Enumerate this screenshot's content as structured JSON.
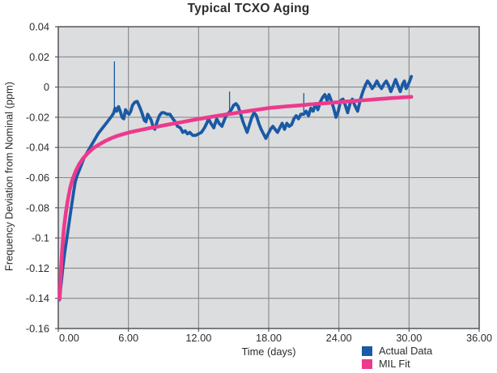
{
  "title": "Typical TCXO Aging",
  "chart_data": {
    "type": "line",
    "title": "Typical TCXO Aging",
    "xlabel": "Time (days)",
    "ylabel": "Frequency Deviation from Nominal (ppm)",
    "xlim": [
      0,
      36
    ],
    "ylim": [
      -0.16,
      0.04
    ],
    "x_ticks": [
      "0.00",
      "6.00",
      "12.00",
      "18.00",
      "24.00",
      "30.00",
      "36.00"
    ],
    "y_ticks": [
      "0.04",
      "0.02",
      "0",
      "-0.02",
      "-0.04",
      "-0.06",
      "-0.08",
      "-0.1",
      "-0.12",
      "-0.14",
      "-0.16"
    ],
    "grid": true,
    "legend_position": "bottom-right",
    "colors": {
      "plot_background": "#dcddde",
      "gridline": "#85888b",
      "plot_border": "#54575a",
      "text": "#2e2c2b",
      "actual_data": "#1a59a5",
      "mil_fit": "#ec3a8d"
    },
    "series": [
      {
        "name": "Actual Data",
        "color": "#1a59a5",
        "points": [
          [
            0.1,
            -0.141
          ],
          [
            0.25,
            -0.13
          ],
          [
            0.4,
            -0.119
          ],
          [
            0.55,
            -0.11
          ],
          [
            0.7,
            -0.102
          ],
          [
            0.85,
            -0.094
          ],
          [
            1.0,
            -0.086
          ],
          [
            1.15,
            -0.078
          ],
          [
            1.3,
            -0.07
          ],
          [
            1.45,
            -0.063
          ],
          [
            1.6,
            -0.059
          ],
          [
            1.8,
            -0.055
          ],
          [
            2.0,
            -0.051
          ],
          [
            2.2,
            -0.047
          ],
          [
            2.5,
            -0.043
          ],
          [
            2.8,
            -0.039
          ],
          [
            3.1,
            -0.035
          ],
          [
            3.4,
            -0.031
          ],
          [
            3.7,
            -0.028
          ],
          [
            4.0,
            -0.025
          ],
          [
            4.3,
            -0.022
          ],
          [
            4.6,
            -0.019
          ],
          [
            4.75,
            -0.017
          ],
          [
            4.85,
            -0.014
          ],
          [
            5.0,
            -0.016
          ],
          [
            5.15,
            -0.013
          ],
          [
            5.3,
            -0.016
          ],
          [
            5.45,
            -0.02
          ],
          [
            5.6,
            -0.021
          ],
          [
            5.75,
            -0.015
          ],
          [
            5.9,
            -0.017
          ],
          [
            6.05,
            -0.018
          ],
          [
            6.2,
            -0.016
          ],
          [
            6.35,
            -0.012
          ],
          [
            6.55,
            -0.01
          ],
          [
            6.75,
            -0.0095
          ],
          [
            6.95,
            -0.013
          ],
          [
            7.15,
            -0.017
          ],
          [
            7.35,
            -0.022
          ],
          [
            7.5,
            -0.023
          ],
          [
            7.65,
            -0.018
          ],
          [
            7.8,
            -0.02
          ],
          [
            7.95,
            -0.022
          ],
          [
            8.1,
            -0.026
          ],
          [
            8.25,
            -0.028
          ],
          [
            8.45,
            -0.023
          ],
          [
            8.65,
            -0.019
          ],
          [
            8.85,
            -0.017
          ],
          [
            9.05,
            -0.017
          ],
          [
            9.3,
            -0.018
          ],
          [
            9.55,
            -0.018
          ],
          [
            9.8,
            -0.021
          ],
          [
            10.0,
            -0.023
          ],
          [
            10.2,
            -0.026
          ],
          [
            10.45,
            -0.027
          ],
          [
            10.65,
            -0.03
          ],
          [
            10.85,
            -0.029
          ],
          [
            11.05,
            -0.031
          ],
          [
            11.25,
            -0.03
          ],
          [
            11.5,
            -0.032
          ],
          [
            11.75,
            -0.032
          ],
          [
            12.0,
            -0.031
          ],
          [
            12.25,
            -0.03
          ],
          [
            12.5,
            -0.027
          ],
          [
            12.7,
            -0.024
          ],
          [
            12.85,
            -0.021
          ],
          [
            13.05,
            -0.024
          ],
          [
            13.3,
            -0.027
          ],
          [
            13.55,
            -0.021
          ],
          [
            13.75,
            -0.024
          ],
          [
            14.0,
            -0.026
          ],
          [
            14.2,
            -0.022
          ],
          [
            14.4,
            -0.018
          ],
          [
            14.6,
            -0.017
          ],
          [
            14.8,
            -0.015
          ],
          [
            15.0,
            -0.012
          ],
          [
            15.2,
            -0.011
          ],
          [
            15.4,
            -0.013
          ],
          [
            15.6,
            -0.018
          ],
          [
            15.8,
            -0.023
          ],
          [
            16.0,
            -0.027
          ],
          [
            16.15,
            -0.03
          ],
          [
            16.35,
            -0.025
          ],
          [
            16.55,
            -0.02
          ],
          [
            16.75,
            -0.017
          ],
          [
            16.95,
            -0.019
          ],
          [
            17.15,
            -0.024
          ],
          [
            17.35,
            -0.028
          ],
          [
            17.55,
            -0.031
          ],
          [
            17.75,
            -0.034
          ],
          [
            17.95,
            -0.031
          ],
          [
            18.15,
            -0.028
          ],
          [
            18.35,
            -0.026
          ],
          [
            18.55,
            -0.028
          ],
          [
            18.75,
            -0.03
          ],
          [
            18.95,
            -0.027
          ],
          [
            19.15,
            -0.024
          ],
          [
            19.35,
            -0.028
          ],
          [
            19.55,
            -0.024
          ],
          [
            19.75,
            -0.026
          ],
          [
            19.95,
            -0.025
          ],
          [
            20.15,
            -0.021
          ],
          [
            20.35,
            -0.019
          ],
          [
            20.55,
            -0.021
          ],
          [
            20.75,
            -0.018
          ],
          [
            21.0,
            -0.018
          ],
          [
            21.2,
            -0.016
          ],
          [
            21.4,
            -0.019
          ],
          [
            21.6,
            -0.014
          ],
          [
            21.8,
            -0.016
          ],
          [
            22.0,
            -0.011
          ],
          [
            22.2,
            -0.015
          ],
          [
            22.4,
            -0.01
          ],
          [
            22.6,
            -0.007
          ],
          [
            22.8,
            -0.005
          ],
          [
            23.0,
            -0.009
          ],
          [
            23.15,
            -0.005
          ],
          [
            23.35,
            -0.009
          ],
          [
            23.55,
            -0.014
          ],
          [
            23.75,
            -0.02
          ],
          [
            23.95,
            -0.016
          ],
          [
            24.15,
            -0.009
          ],
          [
            24.35,
            -0.008
          ],
          [
            24.55,
            -0.012
          ],
          [
            24.75,
            -0.017
          ],
          [
            24.95,
            -0.011
          ],
          [
            25.15,
            -0.008
          ],
          [
            25.35,
            -0.012
          ],
          [
            25.6,
            -0.016
          ],
          [
            25.85,
            -0.008
          ],
          [
            26.05,
            -0.003
          ],
          [
            26.25,
            0.001
          ],
          [
            26.45,
            0.004
          ],
          [
            26.65,
            0.002
          ],
          [
            26.85,
            -0.001
          ],
          [
            27.05,
            0.001
          ],
          [
            27.25,
            0.004
          ],
          [
            27.45,
            0.001
          ],
          [
            27.65,
            -0.001
          ],
          [
            27.85,
            0.002
          ],
          [
            28.05,
            0.004
          ],
          [
            28.25,
            0.001
          ],
          [
            28.45,
            -0.003
          ],
          [
            28.65,
            0.001
          ],
          [
            28.85,
            0.005
          ],
          [
            29.05,
            0.001
          ],
          [
            29.25,
            -0.003
          ],
          [
            29.45,
            0.002
          ],
          [
            29.6,
            0.004
          ],
          [
            29.75,
            -0.001
          ],
          [
            29.9,
            0.001
          ],
          [
            30.05,
            0.004
          ],
          [
            30.2,
            0.007
          ]
        ],
        "spikes": [
          {
            "t": 4.8,
            "base": -0.016,
            "peak": 0.017
          },
          {
            "t": 14.65,
            "base": -0.017,
            "peak": -0.003
          },
          {
            "t": 21.0,
            "base": -0.018,
            "peak": -0.004
          }
        ]
      },
      {
        "name": "MIL Fit",
        "color": "#ec3a8d",
        "points": [
          [
            0.12,
            -0.1405
          ],
          [
            0.2,
            -0.126
          ],
          [
            0.3,
            -0.112
          ],
          [
            0.4,
            -0.101
          ],
          [
            0.5,
            -0.0925
          ],
          [
            0.65,
            -0.083
          ],
          [
            0.8,
            -0.0755
          ],
          [
            1.0,
            -0.0675
          ],
          [
            1.2,
            -0.0615
          ],
          [
            1.5,
            -0.0555
          ],
          [
            1.8,
            -0.051
          ],
          [
            2.1,
            -0.0475
          ],
          [
            2.5,
            -0.044
          ],
          [
            3.0,
            -0.0405
          ],
          [
            3.5,
            -0.038
          ],
          [
            4.0,
            -0.0358
          ],
          [
            4.5,
            -0.034
          ],
          [
            5.0,
            -0.0325
          ],
          [
            5.5,
            -0.0313
          ],
          [
            6.0,
            -0.0302
          ],
          [
            6.5,
            -0.0293
          ],
          [
            7.0,
            -0.0285
          ],
          [
            7.5,
            -0.0277
          ],
          [
            8.0,
            -0.0269
          ],
          [
            8.5,
            -0.0262
          ],
          [
            9.0,
            -0.0254
          ],
          [
            9.5,
            -0.0247
          ],
          [
            10.0,
            -0.024
          ],
          [
            10.5,
            -0.0233
          ],
          [
            11.0,
            -0.0226
          ],
          [
            11.5,
            -0.0219
          ],
          [
            12.0,
            -0.0212
          ],
          [
            12.5,
            -0.0205
          ],
          [
            13.0,
            -0.0199
          ],
          [
            13.5,
            -0.0192
          ],
          [
            14.0,
            -0.0186
          ],
          [
            14.5,
            -0.018
          ],
          [
            15.0,
            -0.0174
          ],
          [
            15.5,
            -0.0168
          ],
          [
            16.0,
            -0.0162
          ],
          [
            16.5,
            -0.0156
          ],
          [
            17.0,
            -0.015
          ],
          [
            17.5,
            -0.0145
          ],
          [
            18.0,
            -0.0139
          ],
          [
            18.5,
            -0.0135
          ],
          [
            19.0,
            -0.0132
          ],
          [
            19.5,
            -0.0128
          ],
          [
            20.0,
            -0.0125
          ],
          [
            20.5,
            -0.0122
          ],
          [
            21.0,
            -0.0119
          ],
          [
            21.5,
            -0.0115
          ],
          [
            22.0,
            -0.0112
          ],
          [
            22.5,
            -0.0109
          ],
          [
            23.0,
            -0.0106
          ],
          [
            23.5,
            -0.0103
          ],
          [
            24.0,
            -0.01
          ],
          [
            24.5,
            -0.0097
          ],
          [
            25.0,
            -0.0094
          ],
          [
            25.5,
            -0.0091
          ],
          [
            26.0,
            -0.0088
          ],
          [
            26.5,
            -0.0085
          ],
          [
            27.0,
            -0.0082
          ],
          [
            27.5,
            -0.0079
          ],
          [
            28.0,
            -0.0076
          ],
          [
            28.5,
            -0.0073
          ],
          [
            29.0,
            -0.0071
          ],
          [
            29.5,
            -0.0068
          ],
          [
            30.2,
            -0.0065
          ]
        ]
      }
    ]
  }
}
